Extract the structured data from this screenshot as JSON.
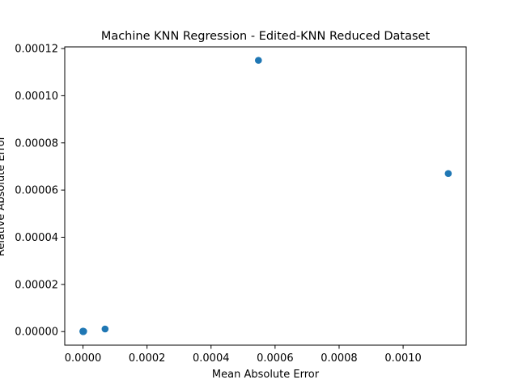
{
  "chart_data": {
    "type": "scatter",
    "title": "Machine KNN Regression - Edited-KNN Reduced Dataset",
    "xlabel": "Mean Absolute Error",
    "ylabel": "Relative Absolute Error",
    "xlim": [
      -5.7e-05,
      0.001197
    ],
    "ylim": [
      -5.75e-06,
      0.0001207
    ],
    "x_ticks": [
      0.0,
      0.0002,
      0.0004,
      0.0006,
      0.0008,
      0.001
    ],
    "x_tick_labels": [
      "0.0000",
      "0.0002",
      "0.0004",
      "0.0006",
      "0.0008",
      "0.0010"
    ],
    "y_ticks": [
      0.0,
      2e-05,
      4e-05,
      6e-05,
      8e-05,
      0.0001,
      0.00012
    ],
    "y_tick_labels": [
      "0.00000",
      "0.00002",
      "0.00004",
      "0.00006",
      "0.00008",
      "0.00010",
      "0.00012"
    ],
    "grid": false,
    "marker_color": "#1f77b4",
    "points": [
      {
        "x": 0.0,
        "y": 0.0
      },
      {
        "x": 1e-06,
        "y": 0.0
      },
      {
        "x": 0.0,
        "y": 1e-07
      },
      {
        "x": 2e-06,
        "y": 1e-07
      },
      {
        "x": 0.0,
        "y": 2e-07
      },
      {
        "x": 6.9e-05,
        "y": 1.1e-06
      },
      {
        "x": 0.000548,
        "y": 0.000115
      },
      {
        "x": 0.001141,
        "y": 6.7e-05
      }
    ]
  }
}
